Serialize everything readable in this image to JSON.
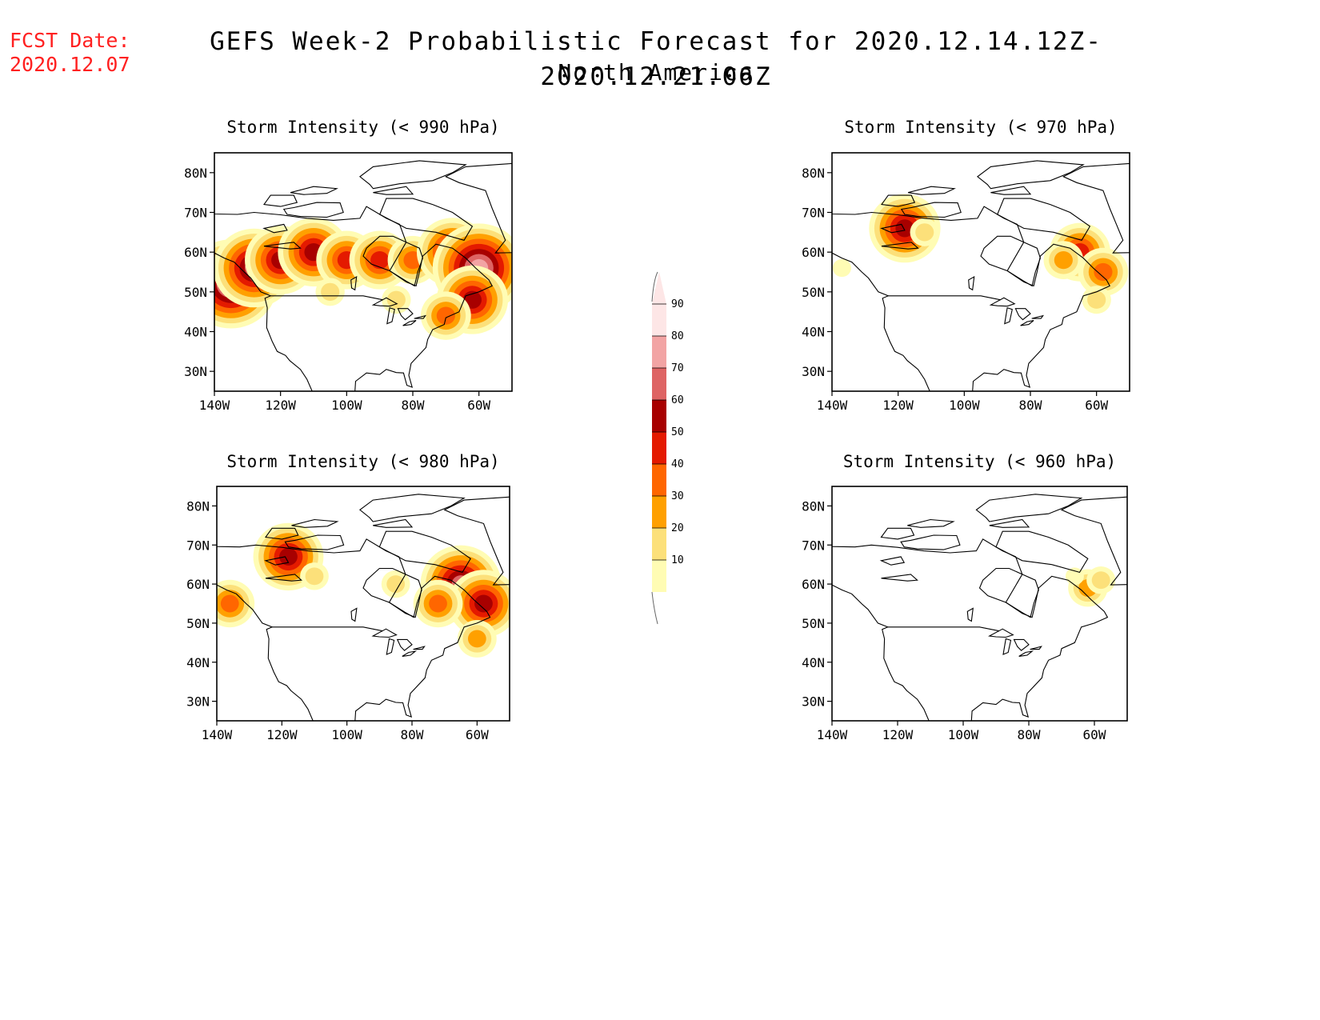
{
  "header": {
    "fcst_label": "FCST Date:",
    "fcst_date": "2020.12.07",
    "title": "GEFS Week-2 Probabilistic Forecast for 2020.12.14.12Z-2020.12.21.06Z",
    "subtitle": "North America"
  },
  "axes": {
    "lat_ticks": [
      "80N",
      "70N",
      "60N",
      "50N",
      "40N",
      "30N"
    ],
    "lon_ticks": [
      "140W",
      "120W",
      "100W",
      "80W",
      "60W"
    ]
  },
  "panels": [
    {
      "id": "p990",
      "title": "Storm Intensity (< 990 hPa)",
      "threshold_hpa": 990
    },
    {
      "id": "p970",
      "title": "Storm Intensity (< 970 hPa)",
      "threshold_hpa": 970
    },
    {
      "id": "p980",
      "title": "Storm Intensity (< 980 hPa)",
      "threshold_hpa": 980
    },
    {
      "id": "p960",
      "title": "Storm Intensity (< 960 hPa)",
      "threshold_hpa": 960
    }
  ],
  "colorbar": {
    "labels": [
      "90",
      "80",
      "70",
      "60",
      "50",
      "40",
      "30",
      "20",
      "10"
    ],
    "colors": [
      "#fde6e6",
      "#f2a4a4",
      "#de6464",
      "#a80000",
      "#e41a00",
      "#ff6600",
      "#ffa000",
      "#fce07a",
      "#fffcb4"
    ]
  },
  "chart_data": {
    "type": "heatmap",
    "units": "probability (%)",
    "levels": [
      10,
      20,
      30,
      40,
      50,
      60,
      70,
      80,
      90
    ],
    "lon_range": [
      -140,
      -50
    ],
    "lat_range": [
      25,
      85
    ],
    "features": {
      "p990": [
        {
          "lon": -135,
          "lat": 52,
          "level": 80
        },
        {
          "lon": -128,
          "lat": 56,
          "level": 70
        },
        {
          "lon": -120,
          "lat": 58,
          "level": 60
        },
        {
          "lon": -110,
          "lat": 60,
          "level": 60
        },
        {
          "lon": -100,
          "lat": 58,
          "level": 50
        },
        {
          "lon": -90,
          "lat": 58,
          "level": 50
        },
        {
          "lon": -80,
          "lat": 58,
          "level": 40
        },
        {
          "lon": -68,
          "lat": 60,
          "level": 60
        },
        {
          "lon": -60,
          "lat": 56,
          "level": 80
        },
        {
          "lon": -62,
          "lat": 48,
          "level": 60
        },
        {
          "lon": -70,
          "lat": 44,
          "level": 40
        },
        {
          "lon": -105,
          "lat": 50,
          "level": 20
        },
        {
          "lon": -85,
          "lat": 48,
          "level": 20
        }
      ],
      "p970": [
        {
          "lon": -118,
          "lat": 66,
          "level": 60
        },
        {
          "lon": -112,
          "lat": 65,
          "level": 20
        },
        {
          "lon": -65,
          "lat": 60,
          "level": 50
        },
        {
          "lon": -58,
          "lat": 55,
          "level": 40
        },
        {
          "lon": -70,
          "lat": 58,
          "level": 30
        },
        {
          "lon": -60,
          "lat": 48,
          "level": 20
        },
        {
          "lon": -137,
          "lat": 56,
          "level": 10
        }
      ],
      "p980": [
        {
          "lon": -136,
          "lat": 55,
          "level": 40
        },
        {
          "lon": -118,
          "lat": 67,
          "level": 60
        },
        {
          "lon": -110,
          "lat": 62,
          "level": 20
        },
        {
          "lon": -85,
          "lat": 60,
          "level": 20
        },
        {
          "lon": -65,
          "lat": 60,
          "level": 70
        },
        {
          "lon": -58,
          "lat": 55,
          "level": 60
        },
        {
          "lon": -72,
          "lat": 55,
          "level": 40
        },
        {
          "lon": -60,
          "lat": 46,
          "level": 30
        }
      ],
      "p960": [
        {
          "lon": -62,
          "lat": 59,
          "level": 30
        },
        {
          "lon": -58,
          "lat": 61,
          "level": 20
        },
        {
          "lon": -66,
          "lat": 62,
          "level": 10
        }
      ]
    }
  }
}
